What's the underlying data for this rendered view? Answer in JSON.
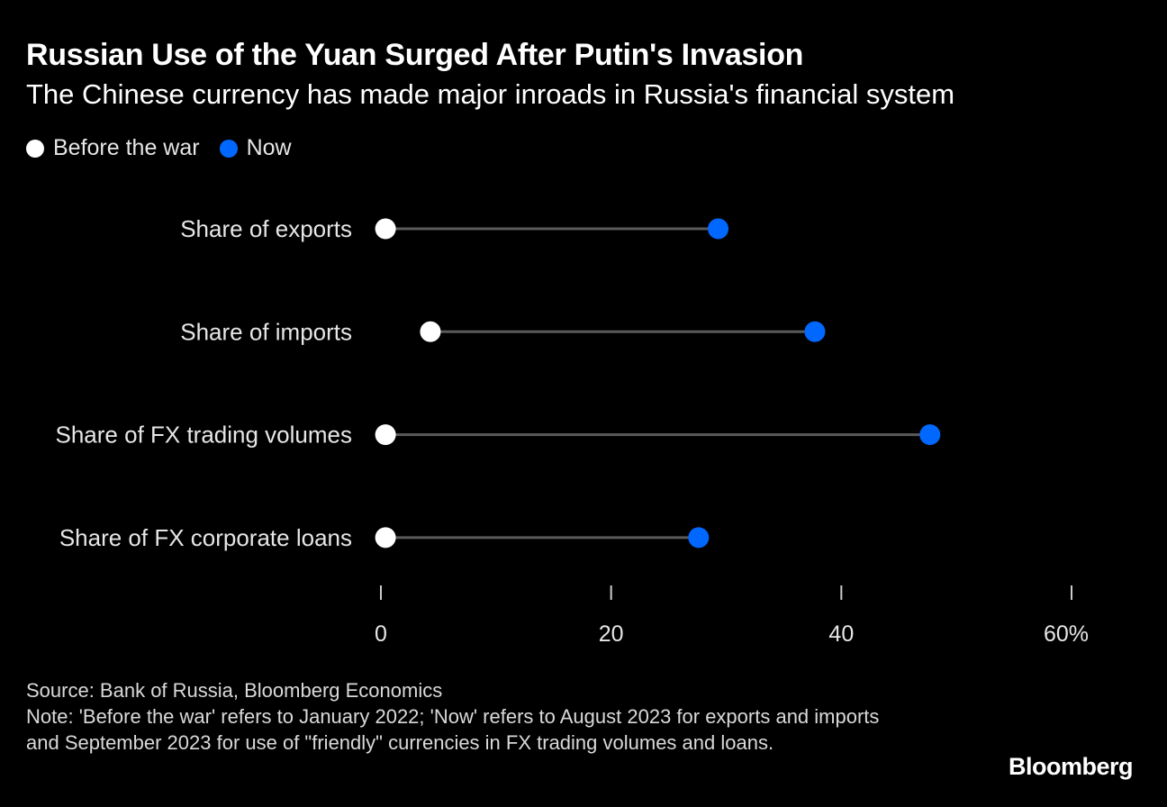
{
  "header": {
    "title": "Russian Use of the Yuan Surged After Putin's Invasion",
    "subtitle": "The Chinese currency has made major inroads in Russia's financial system"
  },
  "legend": {
    "before_label": "Before the war",
    "now_label": "Now"
  },
  "colors": {
    "background": "#000000",
    "before": "#ffffff",
    "now": "#0068ff",
    "connector": "#5a5a5a",
    "label": "#e6e6e6"
  },
  "chart_data": {
    "type": "dumbbell",
    "categories": [
      "Share of exports",
      "Share of imports",
      "Share of FX trading volumes",
      "Share of FX corporate loans"
    ],
    "series": [
      {
        "name": "Before the war",
        "values": [
          0.4,
          4.3,
          0.4,
          0.4
        ]
      },
      {
        "name": "Now",
        "values": [
          29.3,
          37.7,
          47.7,
          27.6
        ]
      }
    ],
    "xlim": [
      0,
      60
    ],
    "xticks": [
      0,
      20,
      40,
      60
    ],
    "xtick_labels": [
      "0",
      "20",
      "40",
      "60%"
    ],
    "xlabel": "",
    "ylabel": ""
  },
  "footer": {
    "source": "Source: Bank of Russia, Bloomberg Economics",
    "note": "Note: 'Before the war' refers to January 2022; 'Now' refers to August 2023 for exports and imports and September 2023 for use of \"friendly\" currencies in FX trading volumes and loans."
  },
  "brand": "Bloomberg"
}
